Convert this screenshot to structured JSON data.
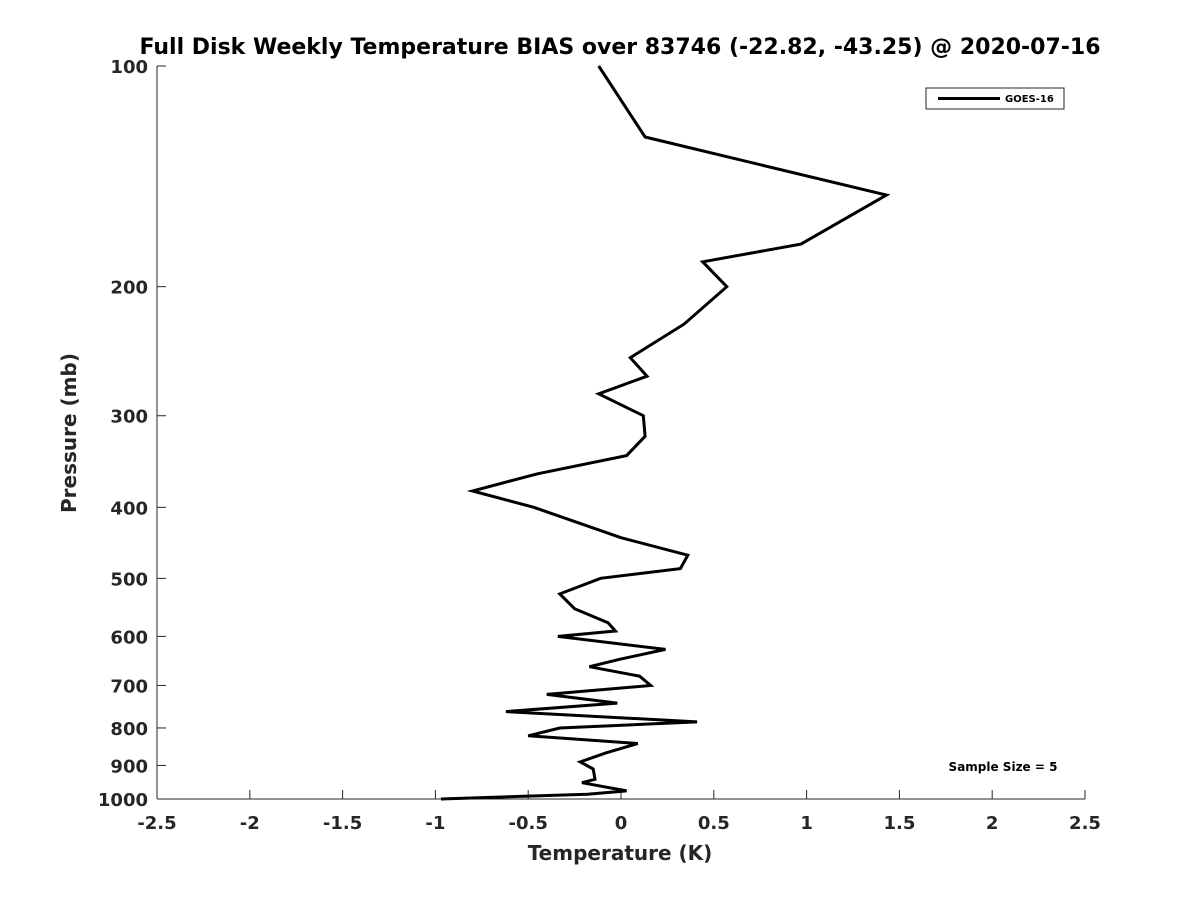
{
  "chart_data": {
    "type": "line",
    "title": "Full Disk Weekly Temperature BIAS over 83746 (-22.82, -43.25) @ 2020-07-16",
    "xlabel": "Temperature (K)",
    "ylabel": "Pressure (mb)",
    "xlim": [
      -2.5,
      2.5
    ],
    "ylim": [
      100,
      1000
    ],
    "y_scale": "log",
    "y_reversed": true,
    "x_ticks": [
      "-2.5",
      "-2",
      "-1.5",
      "-1",
      "-0.5",
      "0",
      "0.5",
      "1",
      "1.5",
      "2",
      "2.5"
    ],
    "x_tick_values": [
      -2.5,
      -2,
      -1.5,
      -1,
      -0.5,
      0,
      0.5,
      1,
      1.5,
      2,
      2.5
    ],
    "y_ticks": [
      "100",
      "200",
      "300",
      "400",
      "500",
      "600",
      "700",
      "800",
      "900",
      "1000"
    ],
    "y_tick_values": [
      100,
      200,
      300,
      400,
      500,
      600,
      700,
      800,
      900,
      1000
    ],
    "grid": false,
    "legend": {
      "position": "top-right",
      "entries": [
        "GOES-16"
      ]
    },
    "annotation": "Sample Size = 5",
    "series": [
      {
        "name": "GOES-16",
        "color": "#000000",
        "points": [
          {
            "x": -0.12,
            "p": 100
          },
          {
            "x": 0.13,
            "p": 125
          },
          {
            "x": 1.43,
            "p": 150
          },
          {
            "x": 0.97,
            "p": 175
          },
          {
            "x": 0.44,
            "p": 185
          },
          {
            "x": 0.57,
            "p": 200
          },
          {
            "x": 0.34,
            "p": 225
          },
          {
            "x": 0.05,
            "p": 250
          },
          {
            "x": 0.14,
            "p": 265
          },
          {
            "x": -0.12,
            "p": 280
          },
          {
            "x": 0.12,
            "p": 300
          },
          {
            "x": 0.13,
            "p": 320
          },
          {
            "x": 0.03,
            "p": 340
          },
          {
            "x": -0.45,
            "p": 360
          },
          {
            "x": -0.8,
            "p": 380
          },
          {
            "x": -0.47,
            "p": 400
          },
          {
            "x": 0.0,
            "p": 440
          },
          {
            "x": 0.36,
            "p": 465
          },
          {
            "x": 0.32,
            "p": 485
          },
          {
            "x": -0.11,
            "p": 500
          },
          {
            "x": -0.33,
            "p": 525
          },
          {
            "x": -0.25,
            "p": 550
          },
          {
            "x": -0.07,
            "p": 575
          },
          {
            "x": -0.03,
            "p": 590
          },
          {
            "x": -0.34,
            "p": 600
          },
          {
            "x": 0.24,
            "p": 625
          },
          {
            "x": -0.01,
            "p": 645
          },
          {
            "x": -0.17,
            "p": 660
          },
          {
            "x": 0.1,
            "p": 680
          },
          {
            "x": 0.16,
            "p": 700
          },
          {
            "x": -0.4,
            "p": 720
          },
          {
            "x": -0.02,
            "p": 740
          },
          {
            "x": -0.62,
            "p": 760
          },
          {
            "x": 0.41,
            "p": 785
          },
          {
            "x": -0.33,
            "p": 800
          },
          {
            "x": -0.5,
            "p": 820
          },
          {
            "x": 0.09,
            "p": 840
          },
          {
            "x": -0.08,
            "p": 865
          },
          {
            "x": -0.22,
            "p": 890
          },
          {
            "x": -0.15,
            "p": 910
          },
          {
            "x": -0.14,
            "p": 940
          },
          {
            "x": -0.21,
            "p": 950
          },
          {
            "x": 0.03,
            "p": 975
          },
          {
            "x": -0.18,
            "p": 985
          },
          {
            "x": -0.97,
            "p": 1000
          }
        ]
      }
    ]
  }
}
